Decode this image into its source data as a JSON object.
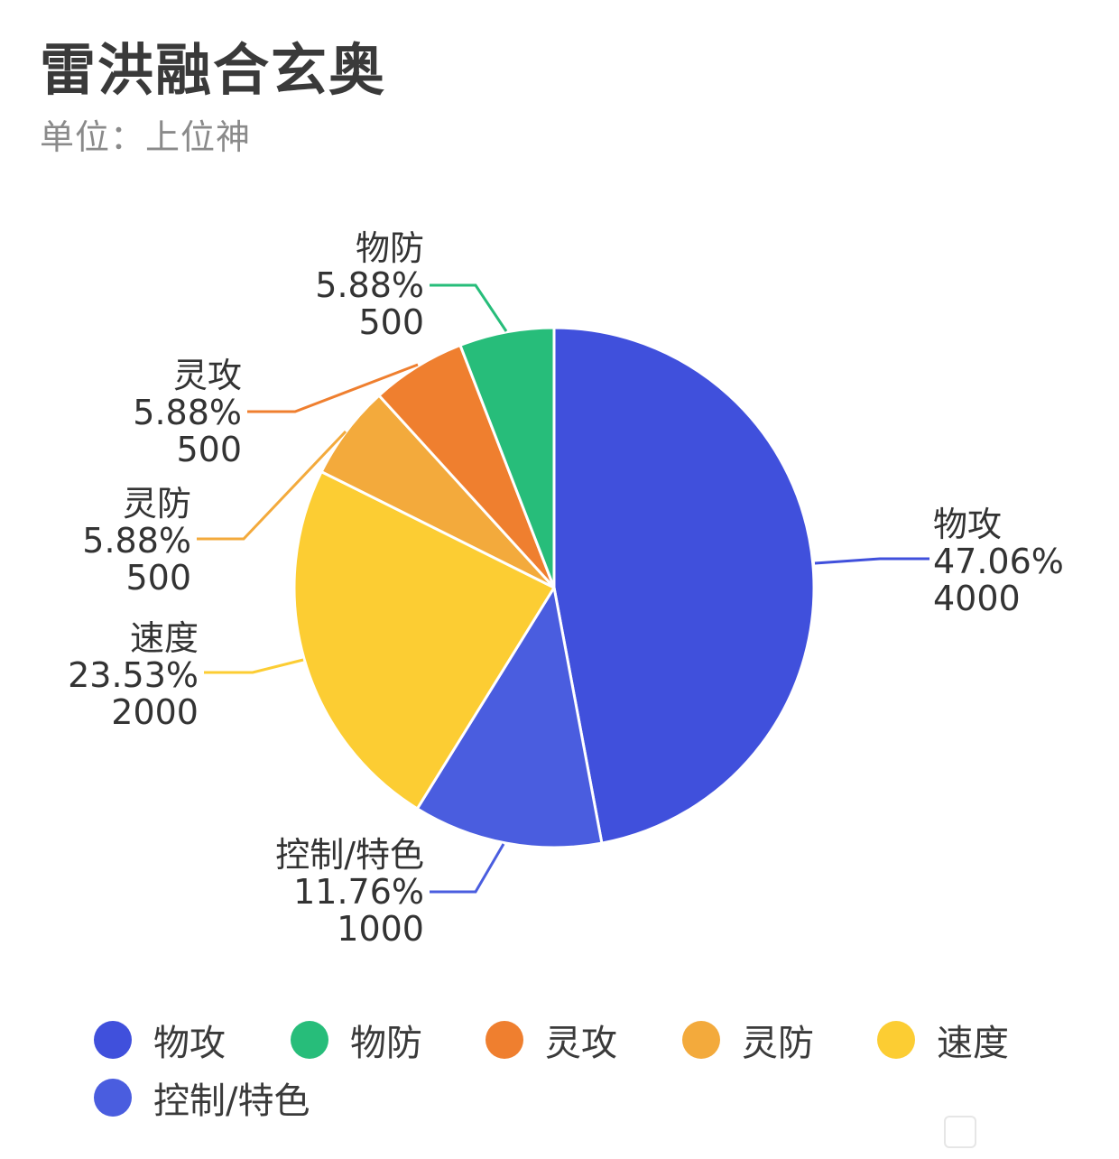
{
  "chart_data": {
    "type": "pie",
    "title": "雷洪融合玄奥",
    "subtitle": "单位：上位神",
    "series": [
      {
        "name": "物攻",
        "value": 4000,
        "percent": "47.06%",
        "color": "#4050dc"
      },
      {
        "name": "控制/特色",
        "value": 1000,
        "percent": "11.76%",
        "color": "#4a5ddf"
      },
      {
        "name": "速度",
        "value": 2000,
        "percent": "23.53%",
        "color": "#fccd33"
      },
      {
        "name": "灵防",
        "value": 500,
        "percent": "5.88%",
        "color": "#f3aa3c"
      },
      {
        "name": "灵攻",
        "value": 500,
        "percent": "5.88%",
        "color": "#ef7f2f"
      },
      {
        "name": "物防",
        "value": 500,
        "percent": "5.88%",
        "color": "#27bd7a"
      }
    ],
    "legend": [
      {
        "name": "物攻",
        "color": "#4050dc"
      },
      {
        "name": "物防",
        "color": "#27bd7a"
      },
      {
        "name": "灵攻",
        "color": "#ef7f2f"
      },
      {
        "name": "灵防",
        "color": "#f3aa3c"
      },
      {
        "name": "速度",
        "color": "#fccd33"
      },
      {
        "name": "控制/特色",
        "color": "#4a5ddf"
      }
    ],
    "legend_position": "bottom"
  }
}
